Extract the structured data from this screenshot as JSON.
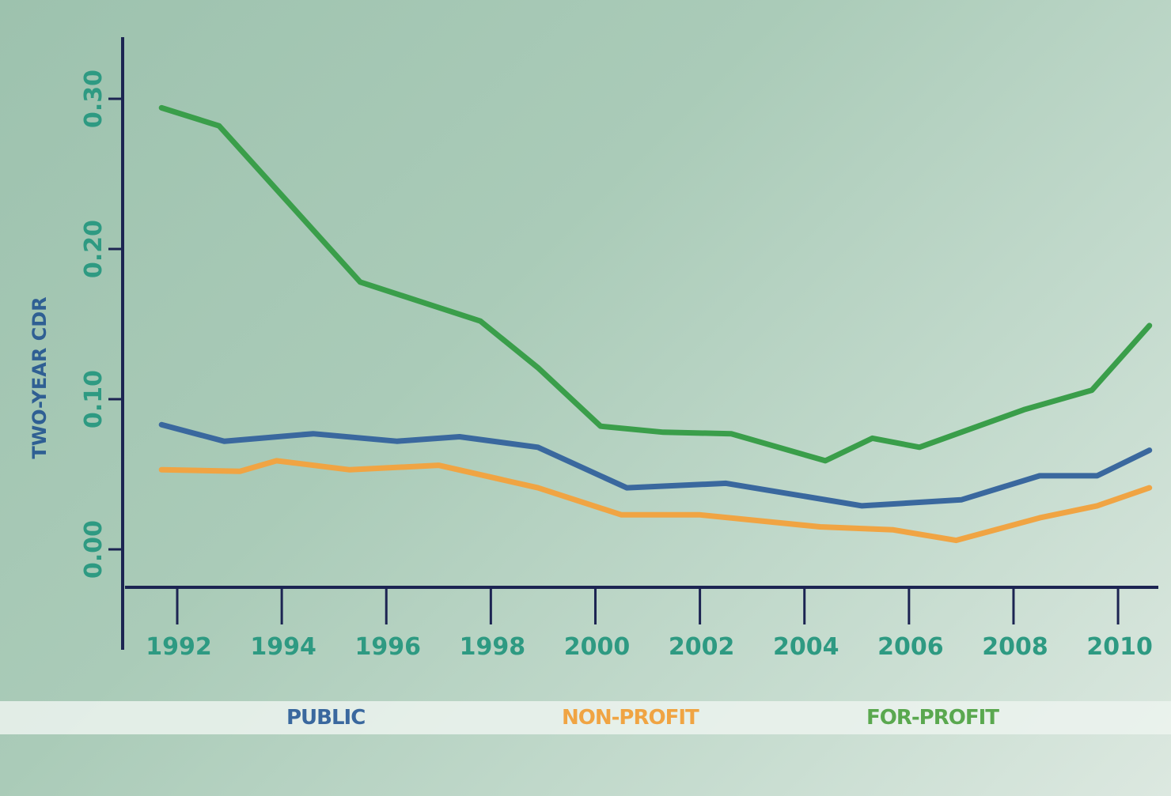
{
  "chart_data": {
    "type": "line",
    "title": "",
    "xlabel": "",
    "ylabel": "TWO-YEAR CDR",
    "xlim": [
      1991.5,
      2010.8
    ],
    "ylim": [
      -0.025,
      0.34
    ],
    "x_ticks": [
      "1992",
      "1994",
      "1996",
      "1998",
      "2000",
      "2002",
      "2004",
      "2006",
      "2008",
      "2010"
    ],
    "y_ticks": [
      "0.00",
      "0.10",
      "0.20",
      "0.30"
    ],
    "grid": false,
    "legend_position": "bottom",
    "series": [
      {
        "name": "PUBLIC",
        "color": "#3a689e",
        "x": [
          1991.7,
          1992.9,
          1994.6,
          1996.2,
          1997.4,
          1998.9,
          2000.6,
          2002.5,
          2005.1,
          2007.0,
          2008.5,
          2009.6,
          2010.6
        ],
        "y": [
          0.083,
          0.072,
          0.077,
          0.072,
          0.075,
          0.068,
          0.041,
          0.044,
          0.029,
          0.033,
          0.049,
          0.049,
          0.066
        ]
      },
      {
        "name": "NON-PROFIT",
        "color": "#f0a443",
        "x": [
          1991.7,
          1993.2,
          1993.9,
          1995.3,
          1997.0,
          1998.9,
          2000.5,
          2002.0,
          2004.3,
          2005.7,
          2006.9,
          2008.5,
          2009.6,
          2010.6
        ],
        "y": [
          0.053,
          0.052,
          0.059,
          0.053,
          0.056,
          0.041,
          0.023,
          0.023,
          0.015,
          0.013,
          0.006,
          0.021,
          0.029,
          0.041
        ]
      },
      {
        "name": "FOR-PROFIT",
        "color": "#3a9e4a",
        "x": [
          1991.7,
          1992.8,
          1995.5,
          1997.8,
          1998.9,
          2000.1,
          2001.3,
          2002.6,
          2004.4,
          2005.3,
          2006.2,
          2008.2,
          2009.5,
          2010.6
        ],
        "y": [
          0.294,
          0.282,
          0.178,
          0.152,
          0.121,
          0.082,
          0.078,
          0.077,
          0.059,
          0.074,
          0.068,
          0.093,
          0.106,
          0.149
        ]
      }
    ]
  },
  "colors": {
    "axis": "#1c2452",
    "tick_label": "#2e9a82",
    "ylabel": "#2f5f93"
  }
}
